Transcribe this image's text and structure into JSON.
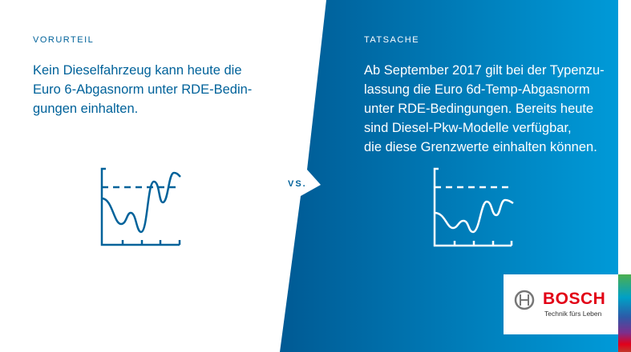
{
  "left": {
    "label": "VORURTEIL",
    "text": "Kein Dieselfahrzeug kann heute die\nEuro 6-Abgasnorm unter RDE-Bedin-\ngungen einhalten.",
    "color": "#00629a"
  },
  "right": {
    "label": "TATSACHE",
    "text": "Ab September 2017 gilt bei der Typenzu-\nlassung die Euro 6d-Temp-Abgasnorm\nunter RDE-Bedingungen. Bereits heute\nsind Diesel-Pkw-Modelle verfügbar,\ndie diese Grenzwerte einhalten können.",
    "gradient": [
      "#005a94",
      "#009ad8"
    ]
  },
  "vs": "VS.",
  "logo": {
    "brand": "BOSCH",
    "slogan": "Technik fürs Leben",
    "brand_color": "#e20015"
  }
}
